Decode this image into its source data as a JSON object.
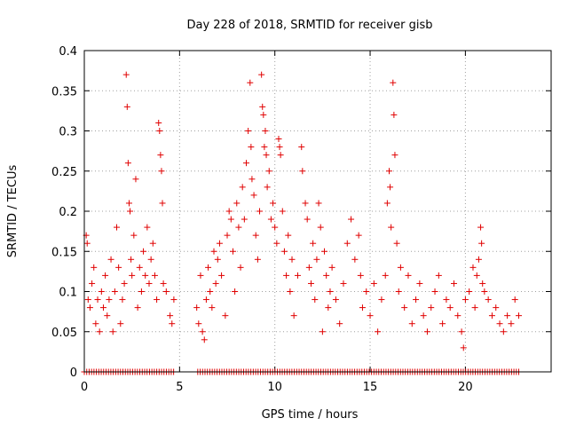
{
  "chart_data": {
    "type": "scatter",
    "title": "Day 228 of 2018, SRMTID for receiver gisb",
    "xlabel": "GPS time / hours",
    "ylabel": "SRMTID / TECUs",
    "xlim": [
      0,
      24.5
    ],
    "ylim": [
      0,
      0.4
    ],
    "xticks": [
      0,
      5,
      10,
      15,
      20
    ],
    "xtick_labels": [
      "0",
      "5",
      "10",
      "15",
      "20"
    ],
    "yticks": [
      0,
      0.05,
      0.1,
      0.15,
      0.2,
      0.25,
      0.3,
      0.35,
      0.4
    ],
    "ytick_labels": [
      "0",
      "0.05",
      "0.1",
      "0.15",
      "0.2",
      "0.25",
      "0.3",
      "0.35",
      "0.4"
    ],
    "grid": true,
    "marker": "plus",
    "color": "#e00000",
    "series": [
      {
        "name": "SRMTID",
        "points": [
          [
            0.1,
            0.17
          ],
          [
            0.15,
            0.16
          ],
          [
            0.2,
            0.09
          ],
          [
            0.3,
            0.08
          ],
          [
            0.4,
            0.11
          ],
          [
            0.5,
            0.13
          ],
          [
            0.6,
            0.06
          ],
          [
            0.7,
            0.09
          ],
          [
            0.8,
            0.05
          ],
          [
            0.9,
            0.1
          ],
          [
            1.0,
            0.08
          ],
          [
            1.1,
            0.12
          ],
          [
            1.2,
            0.07
          ],
          [
            1.3,
            0.09
          ],
          [
            1.4,
            0.14
          ],
          [
            1.5,
            0.05
          ],
          [
            1.6,
            0.1
          ],
          [
            1.7,
            0.18
          ],
          [
            1.8,
            0.13
          ],
          [
            1.9,
            0.06
          ],
          [
            2.0,
            0.09
          ],
          [
            2.1,
            0.11
          ],
          [
            2.2,
            0.37
          ],
          [
            2.25,
            0.33
          ],
          [
            2.3,
            0.26
          ],
          [
            2.35,
            0.21
          ],
          [
            2.4,
            0.2
          ],
          [
            2.45,
            0.14
          ],
          [
            2.5,
            0.12
          ],
          [
            2.6,
            0.17
          ],
          [
            2.7,
            0.24
          ],
          [
            2.8,
            0.08
          ],
          [
            2.9,
            0.13
          ],
          [
            3.0,
            0.1
          ],
          [
            3.1,
            0.15
          ],
          [
            3.2,
            0.12
          ],
          [
            3.3,
            0.18
          ],
          [
            3.4,
            0.11
          ],
          [
            3.5,
            0.14
          ],
          [
            3.6,
            0.16
          ],
          [
            3.7,
            0.12
          ],
          [
            3.8,
            0.09
          ],
          [
            3.9,
            0.31
          ],
          [
            3.95,
            0.3
          ],
          [
            4.0,
            0.27
          ],
          [
            4.05,
            0.25
          ],
          [
            4.1,
            0.21
          ],
          [
            4.15,
            0.11
          ],
          [
            4.3,
            0.1
          ],
          [
            4.5,
            0.07
          ],
          [
            4.6,
            0.06
          ],
          [
            4.7,
            0.09
          ],
          [
            5.9,
            0.08
          ],
          [
            6.0,
            0.06
          ],
          [
            6.1,
            0.12
          ],
          [
            6.2,
            0.05
          ],
          [
            6.3,
            0.04
          ],
          [
            6.4,
            0.09
          ],
          [
            6.5,
            0.13
          ],
          [
            6.6,
            0.1
          ],
          [
            6.7,
            0.08
          ],
          [
            6.8,
            0.15
          ],
          [
            6.9,
            0.11
          ],
          [
            7.0,
            0.14
          ],
          [
            7.1,
            0.16
          ],
          [
            7.2,
            0.12
          ],
          [
            7.4,
            0.07
          ],
          [
            7.5,
            0.17
          ],
          [
            7.6,
            0.2
          ],
          [
            7.7,
            0.19
          ],
          [
            7.8,
            0.15
          ],
          [
            7.9,
            0.1
          ],
          [
            8.0,
            0.21
          ],
          [
            8.1,
            0.18
          ],
          [
            8.2,
            0.13
          ],
          [
            8.3,
            0.23
          ],
          [
            8.4,
            0.19
          ],
          [
            8.5,
            0.26
          ],
          [
            8.6,
            0.3
          ],
          [
            8.7,
            0.36
          ],
          [
            8.75,
            0.28
          ],
          [
            8.8,
            0.24
          ],
          [
            8.9,
            0.22
          ],
          [
            9.0,
            0.17
          ],
          [
            9.1,
            0.14
          ],
          [
            9.2,
            0.2
          ],
          [
            9.3,
            0.37
          ],
          [
            9.35,
            0.33
          ],
          [
            9.4,
            0.32
          ],
          [
            9.45,
            0.28
          ],
          [
            9.5,
            0.3
          ],
          [
            9.55,
            0.27
          ],
          [
            9.6,
            0.23
          ],
          [
            9.7,
            0.25
          ],
          [
            9.8,
            0.19
          ],
          [
            9.9,
            0.21
          ],
          [
            10.0,
            0.18
          ],
          [
            10.1,
            0.16
          ],
          [
            10.2,
            0.29
          ],
          [
            10.25,
            0.28
          ],
          [
            10.3,
            0.27
          ],
          [
            10.4,
            0.2
          ],
          [
            10.5,
            0.15
          ],
          [
            10.6,
            0.12
          ],
          [
            10.7,
            0.17
          ],
          [
            10.8,
            0.1
          ],
          [
            10.9,
            0.14
          ],
          [
            11.0,
            0.07
          ],
          [
            11.2,
            0.12
          ],
          [
            11.4,
            0.28
          ],
          [
            11.45,
            0.25
          ],
          [
            11.6,
            0.21
          ],
          [
            11.7,
            0.19
          ],
          [
            11.8,
            0.13
          ],
          [
            11.9,
            0.11
          ],
          [
            12.0,
            0.16
          ],
          [
            12.1,
            0.09
          ],
          [
            12.2,
            0.14
          ],
          [
            12.3,
            0.21
          ],
          [
            12.4,
            0.18
          ],
          [
            12.5,
            0.05
          ],
          [
            12.6,
            0.15
          ],
          [
            12.7,
            0.12
          ],
          [
            12.8,
            0.08
          ],
          [
            12.9,
            0.1
          ],
          [
            13.0,
            0.13
          ],
          [
            13.2,
            0.09
          ],
          [
            13.4,
            0.06
          ],
          [
            13.6,
            0.11
          ],
          [
            13.8,
            0.16
          ],
          [
            14.0,
            0.19
          ],
          [
            14.2,
            0.14
          ],
          [
            14.4,
            0.17
          ],
          [
            14.5,
            0.12
          ],
          [
            14.6,
            0.08
          ],
          [
            14.8,
            0.1
          ],
          [
            15.0,
            0.07
          ],
          [
            15.2,
            0.11
          ],
          [
            15.4,
            0.05
          ],
          [
            15.6,
            0.09
          ],
          [
            15.8,
            0.12
          ],
          [
            15.9,
            0.21
          ],
          [
            16.0,
            0.25
          ],
          [
            16.05,
            0.23
          ],
          [
            16.1,
            0.18
          ],
          [
            16.2,
            0.36
          ],
          [
            16.25,
            0.32
          ],
          [
            16.3,
            0.27
          ],
          [
            16.4,
            0.16
          ],
          [
            16.5,
            0.1
          ],
          [
            16.6,
            0.13
          ],
          [
            16.8,
            0.08
          ],
          [
            17.0,
            0.12
          ],
          [
            17.2,
            0.06
          ],
          [
            17.4,
            0.09
          ],
          [
            17.6,
            0.11
          ],
          [
            17.8,
            0.07
          ],
          [
            18.0,
            0.05
          ],
          [
            18.2,
            0.08
          ],
          [
            18.4,
            0.1
          ],
          [
            18.6,
            0.12
          ],
          [
            18.8,
            0.06
          ],
          [
            19.0,
            0.09
          ],
          [
            19.2,
            0.08
          ],
          [
            19.4,
            0.11
          ],
          [
            19.6,
            0.07
          ],
          [
            19.8,
            0.05
          ],
          [
            19.9,
            0.03
          ],
          [
            20.0,
            0.09
          ],
          [
            20.2,
            0.1
          ],
          [
            20.4,
            0.13
          ],
          [
            20.5,
            0.08
          ],
          [
            20.6,
            0.12
          ],
          [
            20.7,
            0.14
          ],
          [
            20.8,
            0.18
          ],
          [
            20.85,
            0.16
          ],
          [
            20.9,
            0.11
          ],
          [
            21.0,
            0.1
          ],
          [
            21.2,
            0.09
          ],
          [
            21.4,
            0.07
          ],
          [
            21.6,
            0.08
          ],
          [
            21.8,
            0.06
          ],
          [
            22.0,
            0.05
          ],
          [
            22.2,
            0.07
          ],
          [
            22.4,
            0.06
          ],
          [
            22.6,
            0.09
          ],
          [
            22.8,
            0.07
          ]
        ]
      }
    ],
    "baseline_markers": {
      "y": 0,
      "x_start": 0,
      "x_end": 22.8,
      "gap": [
        4.8,
        5.9
      ]
    }
  }
}
